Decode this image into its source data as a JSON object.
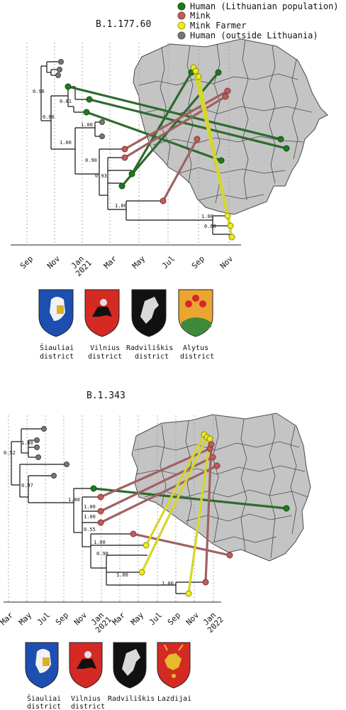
{
  "legend": {
    "items": [
      {
        "label": "Human (Lithuanian population)",
        "color": "#1e7a1e"
      },
      {
        "label": "Mink",
        "color": "#c25b5b"
      },
      {
        "label": "Mink Farmer",
        "color": "#ecec1c"
      },
      {
        "label": "Human (outside Lithuania)",
        "color": "#777777"
      }
    ]
  },
  "top": {
    "title": "B.1.177.60",
    "axis_ticks": [
      "Sep",
      "Nov",
      "Jan\n2021",
      "Mar",
      "May",
      "Jul",
      "Sep",
      "Nov"
    ],
    "support_labels": [
      "0.96",
      "0.81",
      "0.86",
      "1.00",
      "1.00",
      "0.90",
      "0.93",
      "1.00",
      "1.00",
      "0.68"
    ],
    "districts": [
      {
        "name": "Šiauliai",
        "sub": "district"
      },
      {
        "name": "Vilnius",
        "sub": "district"
      },
      {
        "name": "Radviliškis",
        "sub": "district"
      },
      {
        "name": "Alytus",
        "sub": "district"
      }
    ]
  },
  "bottom": {
    "title": "B.1.343",
    "axis_ticks": [
      "Mar",
      "May",
      "Jul",
      "Sep",
      "Nov",
      "Jan\n2021",
      "Mar",
      "May",
      "Jul",
      "Sep",
      "Nov",
      "Jan\n2022"
    ],
    "support_labels": [
      "0.52",
      "1.00",
      "0.97",
      "1.00",
      "1.00",
      "1.00",
      "0.55",
      "1.00",
      "0.98",
      "1.00",
      "1.00"
    ],
    "districts": [
      {
        "name": "Šiauliai",
        "sub": "district"
      },
      {
        "name": "Vilnius",
        "sub": "district"
      },
      {
        "name": "Radviliškis",
        "sub": ""
      },
      {
        "name": "Lazdijai",
        "sub": ""
      }
    ]
  }
}
